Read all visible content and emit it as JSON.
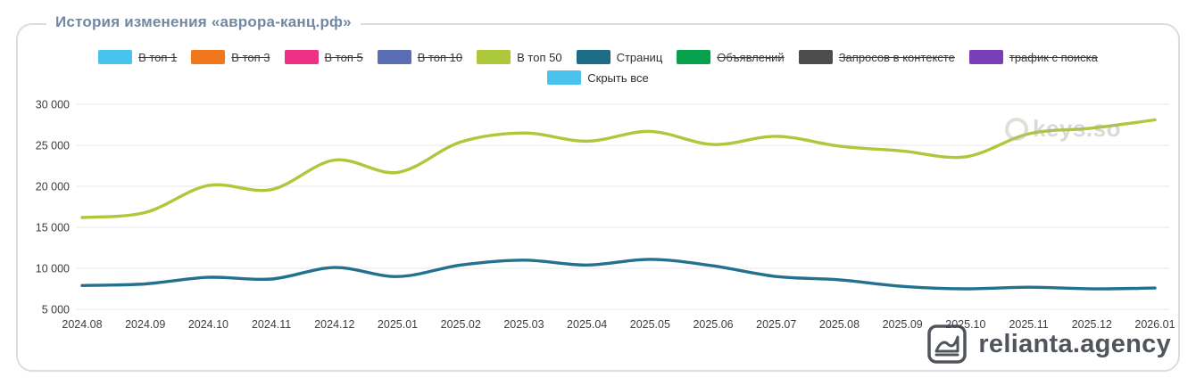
{
  "card": {
    "title": "История изменения «аврора-канц.рф»"
  },
  "legend": {
    "rows": [
      [
        {
          "label": "В топ 1",
          "color": "#49c2ec",
          "hidden": true
        },
        {
          "label": "В топ 3",
          "color": "#f0771c",
          "hidden": true
        },
        {
          "label": "В топ 5",
          "color": "#ee3187",
          "hidden": true
        },
        {
          "label": "В топ 10",
          "color": "#5a6db5",
          "hidden": true
        },
        {
          "label": "В топ 50",
          "color": "#adc83b",
          "hidden": false
        },
        {
          "label": "Страниц",
          "color": "#1d6b87",
          "hidden": false
        },
        {
          "label": "Объявлений",
          "color": "#07a14e",
          "hidden": true
        },
        {
          "label": "Запросов в контексте",
          "color": "#4d4d4d",
          "hidden": true
        },
        {
          "label": "трафик с поиска",
          "color": "#7a3db8",
          "hidden": true
        }
      ],
      [
        {
          "label": "Скрыть все",
          "color": "#49c2ec",
          "hidden": false
        }
      ]
    ]
  },
  "watermarks": {
    "keys": "keys.so",
    "relianta": "relianta.agency"
  },
  "chart_data": {
    "type": "line",
    "title": "История изменения «аврора-канц.рф»",
    "x": [
      "2024.08",
      "2024.09",
      "2024.10",
      "2024.11",
      "2024.12",
      "2025.01",
      "2025.02",
      "2025.03",
      "2025.04",
      "2025.05",
      "2025.06",
      "2025.07",
      "2025.08",
      "2025.09",
      "2025.10",
      "2025.11",
      "2025.12",
      "2026.01"
    ],
    "series": [
      {
        "name": "В топ 50",
        "color": "#adc83b",
        "values": [
          16200,
          16800,
          20100,
          19600,
          23200,
          21700,
          25400,
          26500,
          25500,
          26700,
          25100,
          26100,
          24900,
          24300,
          23600,
          26400,
          27100,
          28100
        ]
      },
      {
        "name": "Страниц",
        "color": "#23718f",
        "values": [
          7900,
          8100,
          8900,
          8700,
          10100,
          9000,
          10400,
          11000,
          10400,
          11100,
          10300,
          9000,
          8600,
          7800,
          7500,
          7700,
          7500,
          7600
        ]
      }
    ],
    "ylim": [
      5000,
      30000
    ],
    "yticks": [
      5000,
      10000,
      15000,
      20000,
      25000,
      30000
    ],
    "ytick_labels": [
      "5 000",
      "10 000",
      "15 000",
      "20 000",
      "25 000",
      "30 000"
    ],
    "grid": true,
    "legend_position": "top"
  }
}
